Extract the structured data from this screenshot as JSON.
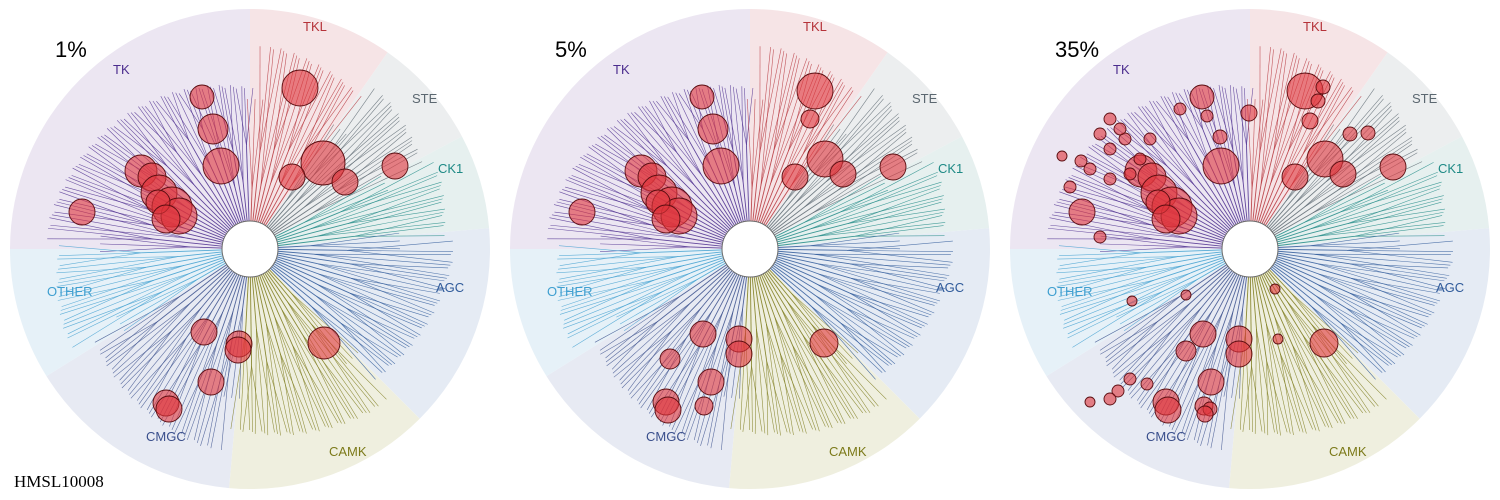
{
  "footer_label": "HMSL10008",
  "panels": [
    {
      "label": "1%"
    },
    {
      "label": "5%"
    },
    {
      "label": "35%"
    }
  ],
  "families": [
    {
      "name": "TK",
      "color": "#4b2c8e",
      "sector_color": "#ece6f2"
    },
    {
      "name": "TKL",
      "color": "#b53239",
      "sector_color": "#f6e4e6"
    },
    {
      "name": "STE",
      "color": "#5b6770",
      "sector_color": "#eceeef"
    },
    {
      "name": "CK1",
      "color": "#1f8a86",
      "sector_color": "#e6f0ef"
    },
    {
      "name": "AGC",
      "color": "#2f5a9a",
      "sector_color": "#e5ebf4"
    },
    {
      "name": "CAMK",
      "color": "#7c7a1a",
      "sector_color": "#efefdf"
    },
    {
      "name": "CMGC",
      "color": "#3a4f8c",
      "sector_color": "#e7eaf3"
    },
    {
      "name": "OTHER",
      "color": "#3f9fd0",
      "sector_color": "#e6f1f8"
    }
  ],
  "marker_color": "#e0343a"
}
